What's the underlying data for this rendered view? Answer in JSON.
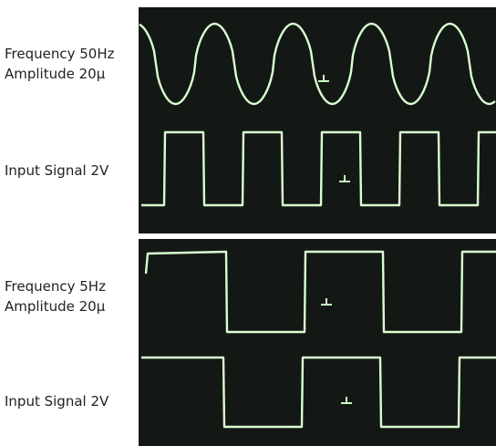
{
  "panels": [
    {
      "response": {
        "frequency": "Frequency 50Hz",
        "amplitude": "Amplitude 20μ"
      },
      "input": "Input Signal 2V"
    },
    {
      "response": {
        "frequency": "Frequency 5Hz",
        "amplitude": "Amplitude 20μ"
      },
      "input": "Input Signal 2V"
    }
  ]
}
